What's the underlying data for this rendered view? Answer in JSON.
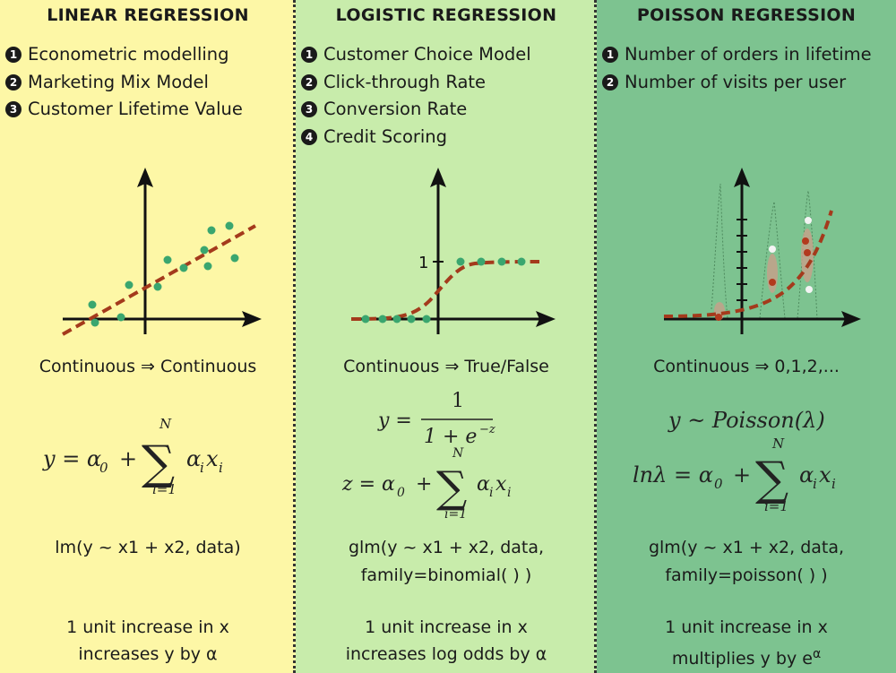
{
  "columns": [
    {
      "title": "LINEAR REGRESSION",
      "uses": [
        {
          "num": "1",
          "text": "Econometric modelling"
        },
        {
          "num": "2",
          "text": "Marketing Mix Model"
        },
        {
          "num": "3",
          "text": "Customer Lifetime Value"
        }
      ],
      "mapping": "Continuous ⇒ Continuous",
      "formula": {
        "lhs": "y = α",
        "sub0": "0",
        "plus": "+",
        "sum_top": "N",
        "sum_bot": "i=1",
        "term": "α",
        "term_sub": "i",
        "var": "x",
        "var_sub": "i"
      },
      "code": [
        "lm(y ~ x1 + x2, data)"
      ],
      "interpretation": [
        "1 unit increase in x",
        "increases y by α"
      ]
    },
    {
      "title": "LOGISTIC REGRESSION",
      "uses": [
        {
          "num": "1",
          "text": "Customer Choice Model"
        },
        {
          "num": "2",
          "text": "Click-through Rate"
        },
        {
          "num": "3",
          "text": "Conversion Rate"
        },
        {
          "num": "4",
          "text": "Credit Scoring"
        }
      ],
      "axis_tick": "1",
      "mapping": "Continuous ⇒ True/False",
      "formula": {
        "y_eq": "y =",
        "numer": "1",
        "denom_base": "1 + e",
        "denom_exp": "−z",
        "lhs": "z = α",
        "sub0": "0",
        "plus": "+",
        "sum_top": "N",
        "sum_bot": "i=1",
        "term": "α",
        "term_sub": "i",
        "var": "x",
        "var_sub": "i"
      },
      "code": [
        "glm(y ~ x1 + x2, data,",
        "family=binomial( ) )"
      ],
      "interpretation": [
        "1 unit increase in x",
        "increases log odds by α"
      ]
    },
    {
      "title": "POISSON REGRESSION",
      "uses": [
        {
          "num": "1",
          "text": "Number of orders in lifetime"
        },
        {
          "num": "2",
          "text": "Number of visits per user"
        }
      ],
      "mapping": "Continuous ⇒ 0,1,2,...",
      "formula": {
        "dist": "y ~ Poisson(λ)",
        "lhs": "lnλ = α",
        "sub0": "0",
        "plus": "+",
        "sum_top": "N",
        "sum_bot": "i=1",
        "term": "α",
        "term_sub": "i",
        "var": "x",
        "var_sub": "i"
      },
      "code": [
        "glm(y ~ x1 + x2, data,",
        "family=poisson( ) )"
      ],
      "interpretation": [
        "1 unit increase in x",
        "multiplies y by e"
      ],
      "interpretation_sup": "α"
    }
  ],
  "colors": {
    "linear_bg": "#fdf7a6",
    "logistic_bg": "#c8ecab",
    "poisson_bg": "#7dc390",
    "fit_line": "#a43a1c",
    "point": "#3aa66f"
  }
}
